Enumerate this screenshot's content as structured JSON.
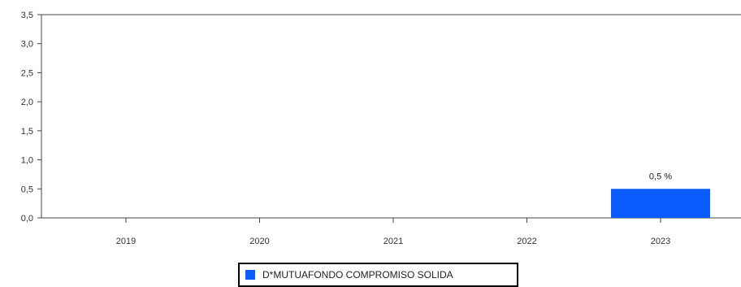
{
  "chart_data": {
    "type": "bar",
    "categories": [
      "2019",
      "2020",
      "2021",
      "2022",
      "2023"
    ],
    "series": [
      {
        "name": "D*MUTUAFONDO COMPROMISO SOLIDA",
        "values": [
          null,
          null,
          null,
          null,
          0.5
        ],
        "color": "#0a5cff"
      }
    ],
    "data_labels": [
      "",
      "",
      "",
      "",
      "0,5 %"
    ],
    "ylim": [
      0,
      3.5
    ],
    "yticks": [
      0,
      0.5,
      1,
      1.5,
      2,
      2.5,
      3,
      3.5
    ],
    "ytick_labels": [
      "0,0",
      "0,5",
      "1,0",
      "1,5",
      "2,0",
      "2,5",
      "3,0",
      "3,5"
    ],
    "title": "",
    "xlabel": "",
    "ylabel": "",
    "grid": false,
    "legend_position": "bottom"
  }
}
